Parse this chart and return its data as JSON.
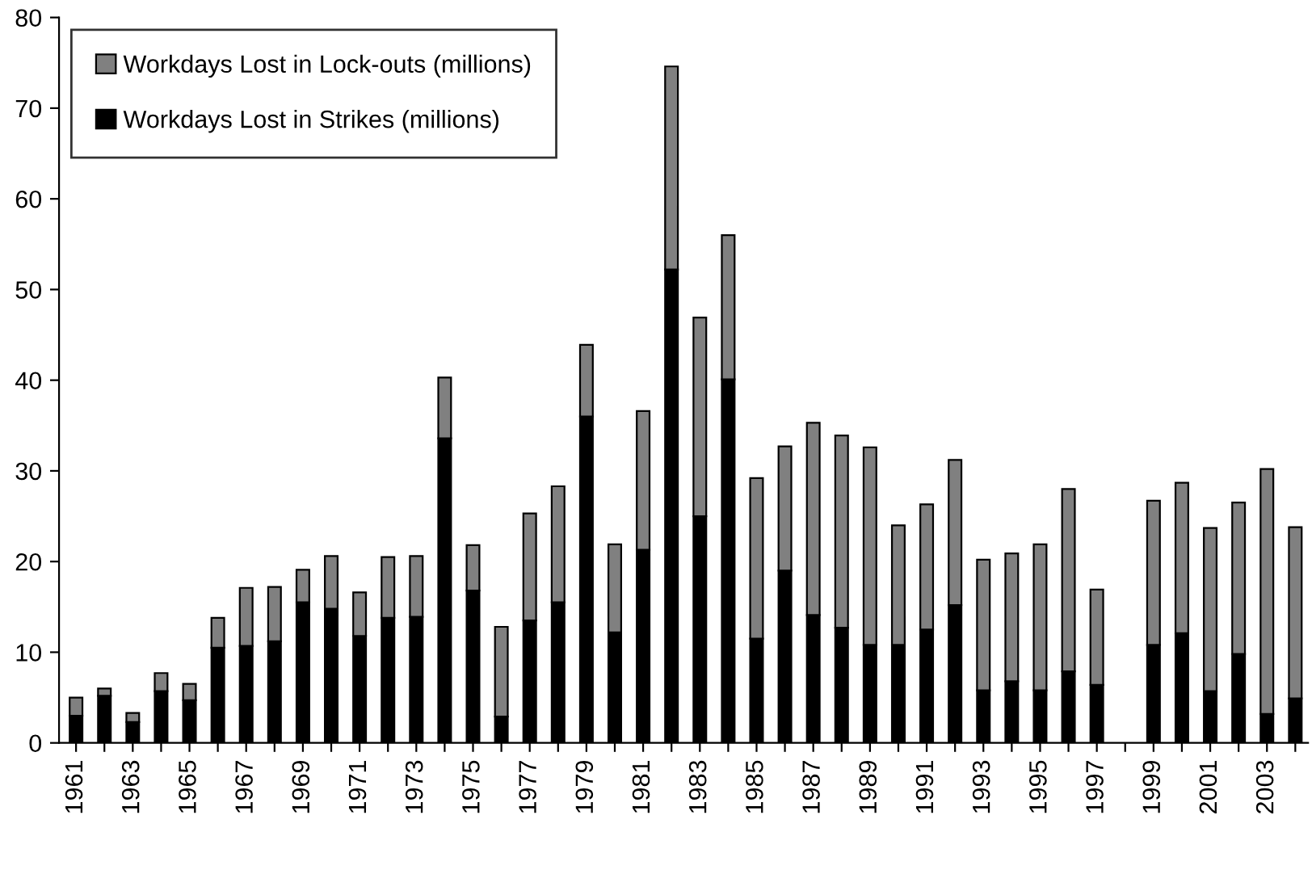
{
  "chart_data": {
    "type": "bar",
    "stacked": true,
    "categories": [
      "1961",
      null,
      "1963",
      null,
      "1965",
      null,
      "1967",
      null,
      "1969",
      null,
      "1971",
      null,
      "1973",
      null,
      "1975",
      null,
      "1977",
      null,
      "1979",
      null,
      "1981",
      null,
      "1983",
      null,
      "1985",
      null,
      "1987",
      null,
      "1989",
      null,
      "1991",
      null,
      "1993",
      null,
      "1995",
      null,
      "1997",
      null,
      "1999",
      null,
      "2001",
      null,
      "2003",
      null
    ],
    "series": [
      {
        "name": "Workdays Lost in Strikes (millions)",
        "color": "#000000",
        "values": [
          3,
          5.2,
          2.3,
          5.7,
          4.7,
          10.5,
          10.7,
          11.2,
          15.5,
          14.8,
          11.8,
          13.8,
          13.9,
          33.6,
          16.8,
          2.9,
          13.5,
          15.5,
          36,
          12.2,
          21.3,
          52.2,
          25,
          40.1,
          11.5,
          19,
          14.1,
          12.7,
          10.8,
          10.8,
          12.5,
          15.2,
          5.8,
          6.8,
          5.8,
          7.9,
          6.4,
          null,
          10.8,
          12.1,
          5.7,
          9.8,
          3.2,
          4.9
        ]
      },
      {
        "name": "Workdays Lost in Lock-outs (millions)",
        "color": "#808080",
        "values": [
          2,
          0.8,
          1.0,
          2.0,
          1.8,
          3.3,
          6.4,
          6.0,
          3.6,
          5.8,
          4.8,
          6.7,
          6.7,
          6.7,
          5.0,
          9.9,
          11.8,
          12.8,
          7.9,
          9.7,
          15.3,
          22.4,
          21.9,
          15.9,
          17.7,
          13.7,
          21.2,
          21.2,
          21.8,
          13.2,
          13.8,
          16.0,
          14.4,
          14.1,
          16.1,
          20.1,
          10.5,
          null,
          15.9,
          16.6,
          18.0,
          16.7,
          27.0,
          18.9
        ]
      }
    ],
    "ylim": [
      0,
      80
    ],
    "yticks": [
      0,
      10,
      20,
      30,
      40,
      50,
      60,
      70,
      80
    ],
    "grid": false,
    "legend": "top left"
  }
}
